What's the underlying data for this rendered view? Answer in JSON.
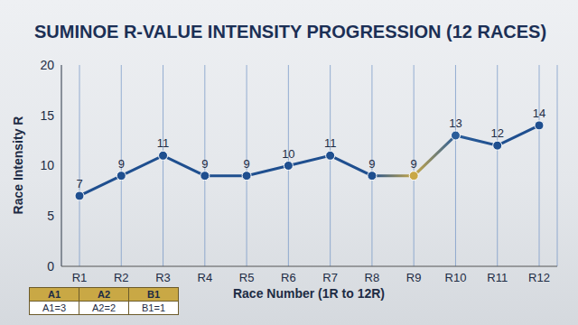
{
  "chart_data": {
    "type": "line",
    "title": "SUMINOE R-VALUE INTENSITY PROGRESSION (12 RACES)",
    "x_label": "Race Number (1R to 12R)",
    "y_label": "Race Intensity R",
    "categories": [
      "R1",
      "R2",
      "R3",
      "R4",
      "R5",
      "R6",
      "R7",
      "R8",
      "R9",
      "R10",
      "R11",
      "R12"
    ],
    "values": [
      7,
      9,
      11,
      9,
      9,
      10,
      11,
      9,
      9,
      13,
      12,
      14
    ],
    "colors": [
      "#1f4f8f",
      "#1f4f8f",
      "#1f4f8f",
      "#1f4f8f",
      "#1f4f8f",
      "#1f4f8f",
      "#1f4f8f",
      "#1f4f8f",
      "#c9a845",
      "#2a5d9a",
      "#1f4f8f",
      "#1f4f8f"
    ],
    "ylim": [
      0,
      20
    ],
    "yticks": [
      0,
      5,
      10,
      15,
      20
    ],
    "grid": true,
    "data_labels": true,
    "marker": "circle",
    "annotations": {
      "table": {
        "headers": [
          "A1",
          "A2",
          "B1"
        ],
        "cells": [
          "A1=3",
          "A2=2",
          "B1=1"
        ]
      }
    }
  }
}
